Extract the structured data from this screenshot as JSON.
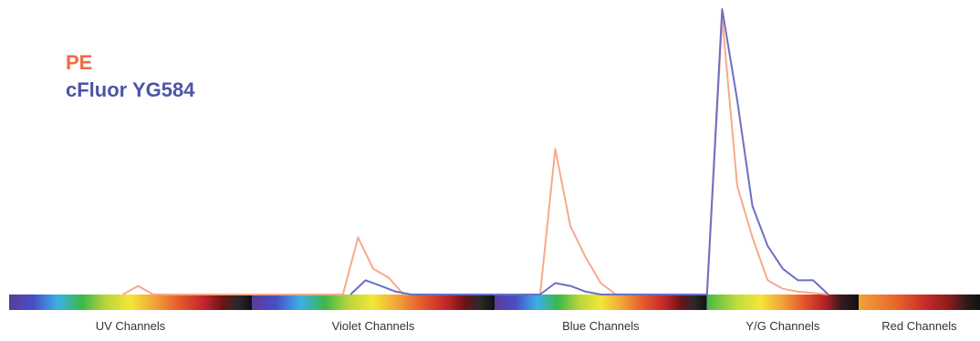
{
  "legend": {
    "pe": "PE",
    "cfluor": "cFluor YG584"
  },
  "colors": {
    "pe": "#f7a98c",
    "cfluor": "#6b6fc4",
    "legend_pe": "#f26a45",
    "legend_cfluor": "#4b55a8",
    "yg_label": "#5a5a1a"
  },
  "chart_data": {
    "type": "line",
    "title": "",
    "xlabel": "",
    "ylabel": "",
    "grid": false,
    "legend_position": "top-left",
    "xlim": [
      0,
      64
    ],
    "ylim": [
      0,
      1
    ],
    "channel_groups": [
      {
        "name": "UV Channels",
        "start": 0,
        "end": 16,
        "palette": "full"
      },
      {
        "name": "Violet Channels",
        "start": 16,
        "end": 32,
        "palette": "full"
      },
      {
        "name": "Blue Channels",
        "start": 32,
        "end": 46,
        "palette": "full"
      },
      {
        "name": "Y/G Channels",
        "start": 46,
        "end": 56,
        "palette": "yg"
      },
      {
        "name": "Red Channels",
        "start": 56,
        "end": 64,
        "palette": "red"
      }
    ],
    "series": [
      {
        "name": "PE",
        "x": [
          7.5,
          8.5,
          9.5,
          22,
          23,
          24,
          25,
          26,
          27,
          35,
          36,
          37,
          38,
          39,
          40,
          41,
          46,
          47,
          48,
          49,
          50,
          51,
          52,
          53,
          54
        ],
        "y": [
          0,
          0.03,
          0,
          0,
          0.2,
          0.09,
          0.06,
          0,
          0,
          0,
          0.51,
          0.24,
          0.13,
          0.04,
          0,
          0,
          0,
          0.97,
          0.38,
          0.2,
          0.05,
          0.02,
          0.01,
          0.005,
          0
        ]
      },
      {
        "name": "cFluor YG584",
        "x": [
          22.5,
          23.5,
          24.5,
          25.5,
          26.5,
          35,
          36,
          37,
          38,
          39,
          46,
          47,
          48,
          49,
          50,
          51,
          52,
          53,
          54
        ],
        "y": [
          0,
          0.05,
          0.03,
          0.01,
          0,
          0,
          0.04,
          0.03,
          0.01,
          0,
          0,
          1.0,
          0.68,
          0.31,
          0.17,
          0.09,
          0.05,
          0.05,
          0
        ]
      }
    ]
  }
}
